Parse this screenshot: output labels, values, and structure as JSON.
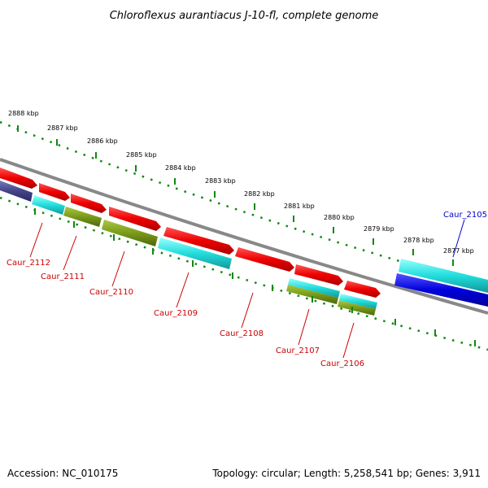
{
  "title": "Chloroflexus aurantiacus J-10-fl, complete genome",
  "footer": {
    "accession": "Accession: NC_010175",
    "summary": "Topology: circular; Length: 5,258,541 bp; Genes: 3,911"
  },
  "scale": {
    "ticks": [
      "2888 kbp",
      "2887 kbp",
      "2886 kbp",
      "2885 kbp",
      "2884 kbp",
      "2883 kbp",
      "2882 kbp",
      "2881 kbp",
      "2880 kbp",
      "2879 kbp",
      "2878 kbp",
      "2877 kbp"
    ]
  },
  "genes": [
    {
      "label": "Caur_2112",
      "color": "#cc0000"
    },
    {
      "label": "Caur_2111",
      "color": "#cc0000"
    },
    {
      "label": "Caur_2110",
      "color": "#cc0000"
    },
    {
      "label": "Caur_2109",
      "color": "#cc0000"
    },
    {
      "label": "Caur_2108",
      "color": "#cc0000"
    },
    {
      "label": "Caur_2107",
      "color": "#cc0000"
    },
    {
      "label": "Caur_2106",
      "color": "#cc0000"
    },
    {
      "label": "Caur_2105",
      "color": "#0000cc"
    }
  ],
  "colors": {
    "cds_forward": "#ee0000",
    "cds_reverse": "#0000dd",
    "cyan": "#22dddd",
    "olive": "#7a9a1a",
    "purple": "#444488",
    "backbone": "#888888",
    "ruler": "#118811"
  }
}
